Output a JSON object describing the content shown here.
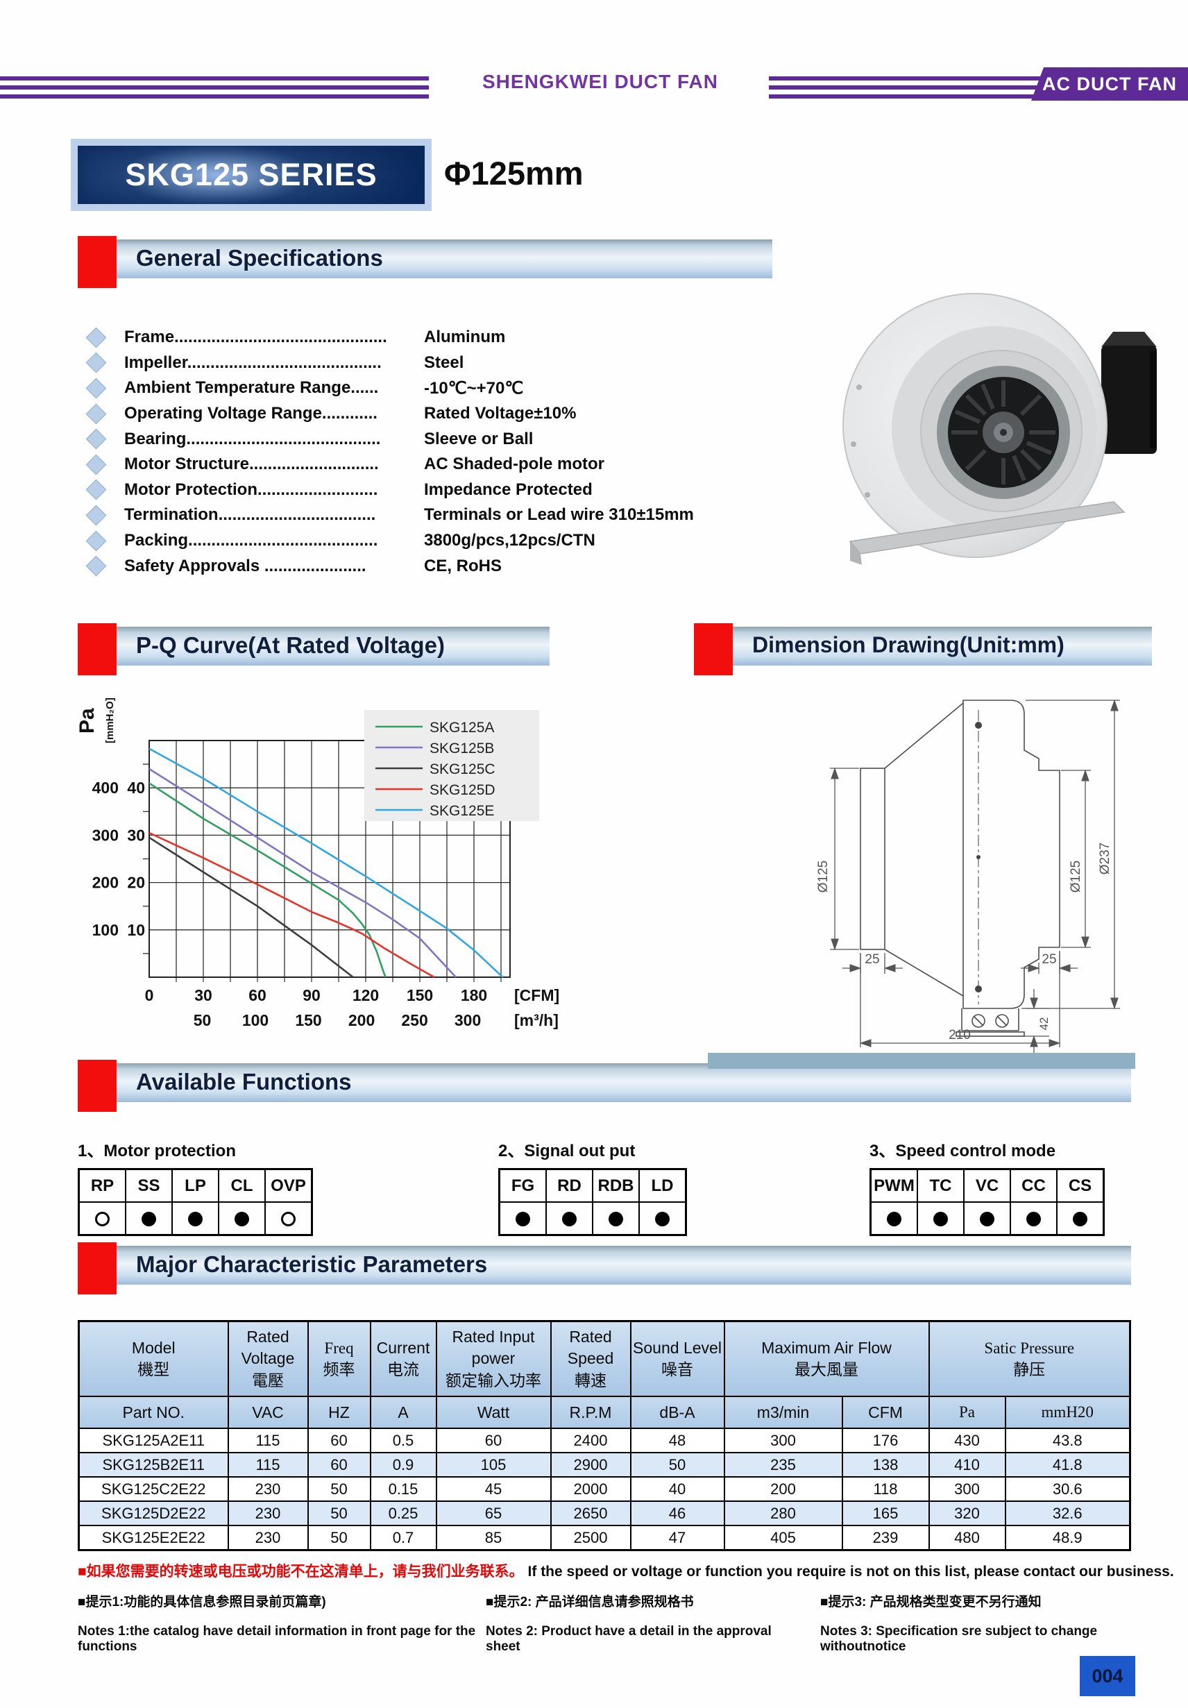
{
  "header": {
    "brand": "SHENGKWEI DUCT FAN",
    "badge": "AC DUCT FAN"
  },
  "title": {
    "series": "SKG125 SERIES",
    "diameter": "Φ125mm"
  },
  "sections": {
    "general": "General Specifications",
    "pq_curve": "P-Q Curve(At Rated Voltage)",
    "dimension": "Dimension Drawing(Unit:mm)",
    "functions": "Available Functions",
    "parameters": "Major Characteristic Parameters"
  },
  "specs": [
    {
      "label": "Frame..............................................",
      "value": "Aluminum"
    },
    {
      "label": "Impeller..........................................",
      "value": "Steel"
    },
    {
      "label": "Ambient Temperature Range......",
      "value": "-10℃~+70℃"
    },
    {
      "label": "Operating Voltage Range............",
      "value": "Rated Voltage±10%"
    },
    {
      "label": "Bearing..........................................",
      "value": "Sleeve or Ball"
    },
    {
      "label": "Motor Structure............................",
      "value": "AC Shaded-pole motor"
    },
    {
      "label": "Motor Protection..........................",
      "value": "Impedance Protected"
    },
    {
      "label": "Termination..................................",
      "value": "Terminals or Lead wire 310±15mm"
    },
    {
      "label": "Packing.........................................",
      "value": "3800g/pcs,12pcs/CTN"
    },
    {
      "label": "Safety Approvals ......................",
      "value": "CE, RoHS"
    }
  ],
  "function_tables": [
    {
      "title": "1、Motor protection",
      "columns": [
        "RP",
        "SS",
        "LP",
        "CL",
        "OVP"
      ],
      "marks": [
        "open",
        "filled",
        "filled",
        "filled",
        "open"
      ]
    },
    {
      "title": "2、Signal out put",
      "columns": [
        "FG",
        "RD",
        "RDB",
        "LD"
      ],
      "marks": [
        "filled",
        "filled",
        "filled",
        "filled"
      ]
    },
    {
      "title": "3、Speed control mode",
      "columns": [
        "PWM",
        "TC",
        "VC",
        "CC",
        "CS"
      ],
      "marks": [
        "filled",
        "filled",
        "filled",
        "filled",
        "filled"
      ]
    }
  ],
  "parameters_table": {
    "header_groups": [
      {
        "en": "Model",
        "cn": "機型",
        "span": 1
      },
      {
        "en": "Rated Voltage",
        "cn": "電壓",
        "span": 1
      },
      {
        "en": "Freq",
        "cn": "频率",
        "span": 1,
        "serif": true
      },
      {
        "en": "Current",
        "cn": "电流",
        "span": 1
      },
      {
        "en": "Rated Input power",
        "cn": "额定输入功率",
        "span": 1
      },
      {
        "en": "Rated Speed",
        "cn": "轉速",
        "span": 1
      },
      {
        "en": "Sound Level",
        "cn": "噪音",
        "span": 1
      },
      {
        "en": "Maximum Air Flow",
        "cn": "最大風量",
        "span": 2
      },
      {
        "en": "Satic Pressure",
        "cn": "静压",
        "span": 2,
        "serif": true
      }
    ],
    "unit_row": [
      "Part NO.",
      "VAC",
      "HZ",
      "A",
      "Watt",
      "R.P.M",
      "dB-A",
      "m3/min",
      "CFM",
      "Pa",
      "mmH20"
    ],
    "serif_units": [
      9,
      10
    ],
    "rows": [
      [
        "SKG125A2E11",
        "115",
        "60",
        "0.5",
        "60",
        "2400",
        "48",
        "300",
        "176",
        "430",
        "43.8"
      ],
      [
        "SKG125B2E11",
        "115",
        "60",
        "0.9",
        "105",
        "2900",
        "50",
        "235",
        "138",
        "410",
        "41.8"
      ],
      [
        "SKG125C2E22",
        "230",
        "50",
        "0.15",
        "45",
        "2000",
        "40",
        "200",
        "118",
        "300",
        "30.6"
      ],
      [
        "SKG125D2E22",
        "230",
        "50",
        "0.25",
        "65",
        "2650",
        "46",
        "280",
        "165",
        "320",
        "32.6"
      ],
      [
        "SKG125E2E22",
        "230",
        "50",
        "0.7",
        "85",
        "2500",
        "47",
        "405",
        "239",
        "480",
        "48.9"
      ]
    ]
  },
  "chart_data": {
    "type": "line",
    "title": "P-Q Curve(At Rated Voltage)",
    "ylabel_primary": "Pa",
    "ylabel_secondary": "[mmH₂O]",
    "grid": true,
    "legend_position": "top-right",
    "x_axis": {
      "cfm_ticks": [
        0,
        30,
        60,
        90,
        120,
        150,
        180
      ],
      "cfm_unit": "[CFM]",
      "m3h_ticks": [
        50,
        100,
        150,
        200,
        250,
        300
      ],
      "m3h_unit": "[m³/h]",
      "max_cfm": 200,
      "m3h_to_cfm": 0.58858
    },
    "y_axis": {
      "pa_ticks": [
        400,
        300,
        200,
        100
      ],
      "mmh2o_ticks": [
        40,
        30,
        20,
        10
      ],
      "max_pa": 500
    },
    "series": [
      {
        "name": "SKG125A",
        "color": "#2fa060",
        "points": [
          [
            0,
            410
          ],
          [
            30,
            335
          ],
          [
            60,
            268
          ],
          [
            90,
            198
          ],
          [
            105,
            163
          ],
          [
            113,
            135
          ],
          [
            118,
            112
          ],
          [
            122,
            90
          ],
          [
            126,
            55
          ],
          [
            130,
            10
          ],
          [
            131,
            0
          ]
        ]
      },
      {
        "name": "SKG125B",
        "color": "#8274c4",
        "points": [
          [
            0,
            440
          ],
          [
            30,
            368
          ],
          [
            60,
            295
          ],
          [
            90,
            222
          ],
          [
            120,
            158
          ],
          [
            135,
            122
          ],
          [
            150,
            82
          ],
          [
            170,
            0
          ]
        ]
      },
      {
        "name": "SKG125C",
        "color": "#3c3c3c",
        "points": [
          [
            0,
            295
          ],
          [
            30,
            222
          ],
          [
            60,
            150
          ],
          [
            90,
            68
          ],
          [
            113,
            0
          ]
        ]
      },
      {
        "name": "SKG125D",
        "color": "#e63229",
        "points": [
          [
            0,
            305
          ],
          [
            30,
            252
          ],
          [
            60,
            196
          ],
          [
            90,
            138
          ],
          [
            103,
            118
          ],
          [
            112,
            103
          ],
          [
            118,
            92
          ],
          [
            130,
            62
          ],
          [
            145,
            28
          ],
          [
            158,
            0
          ]
        ]
      },
      {
        "name": "SKG125E",
        "color": "#2fa7e4",
        "points": [
          [
            0,
            483
          ],
          [
            30,
            420
          ],
          [
            60,
            350
          ],
          [
            90,
            283
          ],
          [
            120,
            213
          ],
          [
            150,
            140
          ],
          [
            165,
            103
          ],
          [
            180,
            57
          ],
          [
            196,
            0
          ]
        ]
      }
    ]
  },
  "dimension_labels": {
    "left_dia": "Ø125",
    "right_dia": "Ø125",
    "outer_dia": "Ø237",
    "left_depth": "25",
    "right_depth": "25",
    "foot_height": "42",
    "total_length": "210"
  },
  "notes": {
    "red_cn": "■如果您需要的转速或电压或功能不在这清单上，请与我们业务联系。",
    "red_en": "If the speed or voltage or function you require is not on this list, please contact our business.",
    "note1_cn": "■提示1:功能的具体信息参照目录前页篇章)",
    "note1_en": "Notes 1:the catalog have detail information in front page for the functions",
    "note2_cn": "■提示2: 产品详细信息请参照规格书",
    "note2_en": "Notes 2: Product have a  detail in the approval sheet",
    "note3_cn": "■提示3:  产品规格类型变更不另行通知",
    "note3_en": "Notes 3:  Specification sre subject to change withoutnotice"
  },
  "page_number": "004",
  "colors": {
    "purple": "#5e2a96",
    "accent_red": "#f30e0e",
    "table_header_blue": "#b9d2ea",
    "row_alt_blue": "#dbe8f8",
    "page_badge_blue": "#1d59cb",
    "drawing_strip": "#8fafc4"
  }
}
